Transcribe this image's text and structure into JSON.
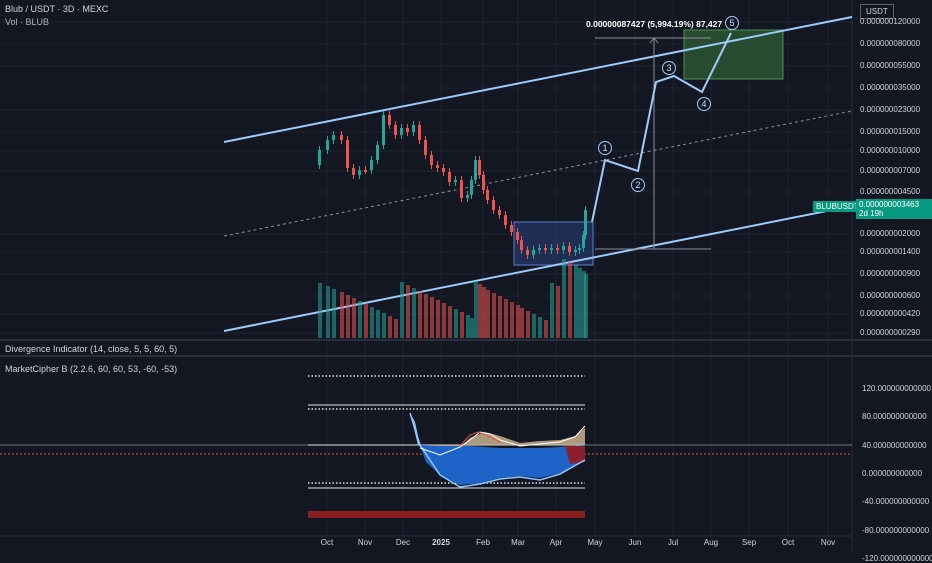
{
  "header": {
    "symbol_line": "Blub / USDT · 3D · MEXC",
    "vol_line": "Vol · BLUB"
  },
  "currency_label": "USDT",
  "price_axis": [
    "0.000000120000",
    "0.000000080000",
    "0.000000055000",
    "0.000000035000",
    "0.000000023000",
    "0.000000015000",
    "0.000000010000",
    "0.000000007000",
    "0.000000004500",
    "0.000000002000",
    "0.000000001400",
    "0.000000000900",
    "0.000000000600",
    "0.000000000420",
    "0.000000000290"
  ],
  "current_price": {
    "ticker": "BLUBUSDT",
    "price": "0.000000003463",
    "countdown": "2d 19h"
  },
  "measure_label": "0.00000087427 (5,994.19%) 87,427",
  "waves": [
    "1",
    "2",
    "3",
    "4",
    "5"
  ],
  "indicators": {
    "divergence": "Divergence Indicator (14, close, 5, 5, 60, 5)",
    "marketcipher": "MarketCipher B (2.2.6, 60, 60, 53, -60, -53)"
  },
  "osc_axis": [
    "120.000000000000",
    "80.000000000000",
    "40.000000000000",
    "0.000000000000",
    "-40.000000000000",
    "-80.000000000000",
    "-120.000000000000"
  ],
  "time_axis": [
    "Oct",
    "Nov",
    "Dec",
    "2025",
    "Feb",
    "Mar",
    "Apr",
    "May",
    "Jun",
    "Jul",
    "Aug",
    "Sep",
    "Oct",
    "Nov"
  ],
  "colors": {
    "background": "#131722",
    "up": "#26a69a",
    "down": "#ef5350",
    "channel": "#9ecbf7",
    "price_tag": "#089981",
    "target_box": "#2e5d34",
    "consolidation_box": "#2a3f7a"
  }
}
